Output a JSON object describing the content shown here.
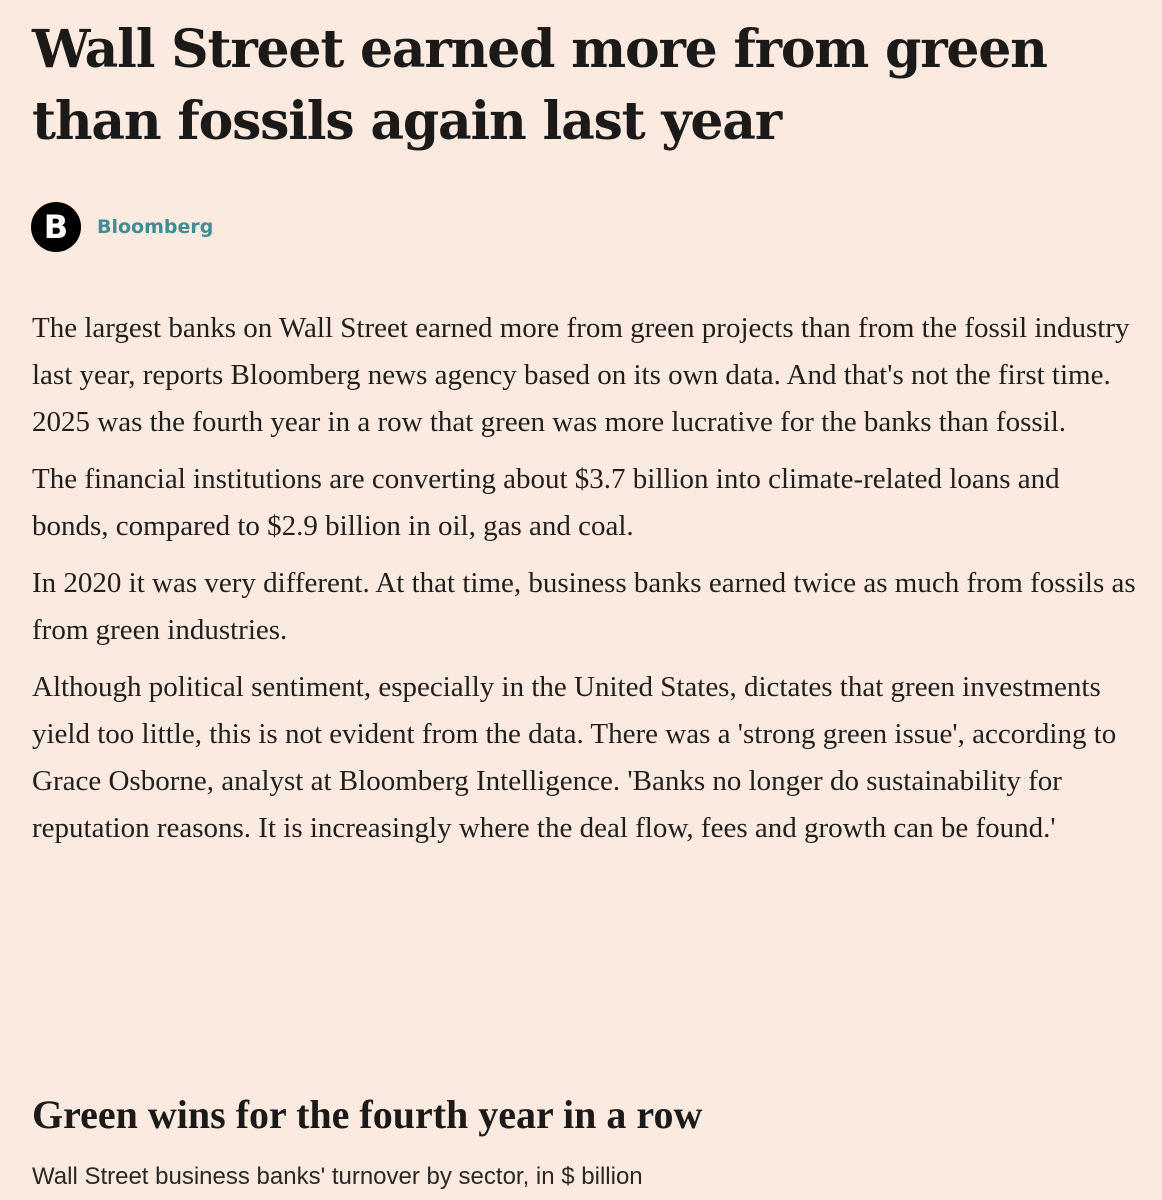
{
  "article": {
    "headline": "Wall Street earned more from green than fossils again last year",
    "source": {
      "logo_letter": "B",
      "name": "Bloomberg"
    },
    "paragraphs": [
      "The largest banks on Wall Street earned more from green projects than from the fossil industry last year, reports Bloomberg news agency based on its own data. And that's not the first time. 2025 was the fourth year in a row that green was more lucrative for the banks than fossil.",
      "The financial institutions are converting about $3.7 billion into climate-related loans and bonds, compared to $2.9 billion in oil, gas and coal.",
      "In 2020 it was very different. At that time, business banks earned twice as much from fossils as from green industries.",
      "Although political sentiment, especially in the United States, dictates that green investments yield too little, this is not evident from the data. There was a 'strong green issue', according to Grace Osborne, analyst at Bloomberg Intelligence. 'Banks no longer do sustainability for reputation reasons. It is increasingly where the deal flow, fees and growth can be found.'"
    ],
    "section_heading": "Green wins for the fourth year in a row",
    "chart_subtitle": "Wall Street business banks' turnover by sector, in $ billion"
  }
}
